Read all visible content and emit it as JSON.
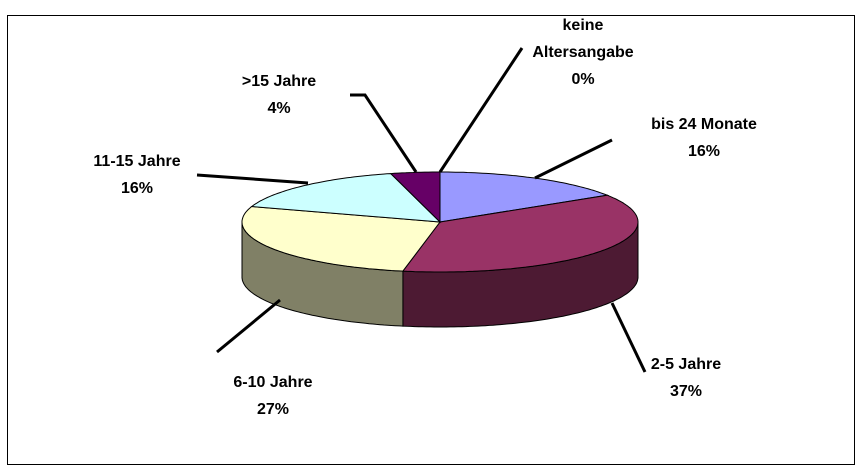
{
  "chart_data": {
    "type": "pie",
    "categories": [
      "keine Altersangabe",
      "bis 24 Monate",
      "2-5 Jahre",
      "6-10 Jahre",
      "11-15 Jahre",
      ">15 Jahre"
    ],
    "values": [
      0,
      16,
      37,
      27,
      16,
      4
    ],
    "value_labels": [
      "0%",
      "16%",
      "37%",
      "27%",
      "16%",
      "4%"
    ],
    "colors": [
      "#3366ff",
      "#9999ff",
      "#993366",
      "#ffffcc",
      "#ccffff",
      "#660066"
    ]
  }
}
